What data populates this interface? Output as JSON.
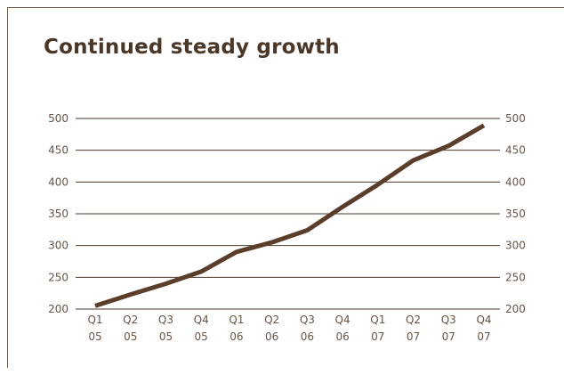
{
  "chart_data": {
    "type": "line",
    "title": "Continued steady growth",
    "xlabel": "",
    "ylabel": "",
    "categories": [
      [
        "Q1",
        "05"
      ],
      [
        "Q2",
        "05"
      ],
      [
        "Q3",
        "05"
      ],
      [
        "Q4",
        "05"
      ],
      [
        "Q1",
        "06"
      ],
      [
        "Q2",
        "06"
      ],
      [
        "Q3",
        "06"
      ],
      [
        "Q4",
        "06"
      ],
      [
        "Q1",
        "07"
      ],
      [
        "Q2",
        "07"
      ],
      [
        "Q3",
        "07"
      ],
      [
        "Q4",
        "07"
      ]
    ],
    "series": [
      {
        "values": [
          205,
          223,
          240,
          259,
          290,
          305,
          324,
          361,
          396,
          434,
          457,
          489
        ]
      }
    ],
    "ylim": [
      200,
      500
    ],
    "yticks": [
      200,
      250,
      300,
      350,
      400,
      450,
      500
    ],
    "y_axis_both_sides": true,
    "grid": true,
    "legend": "none",
    "colors": {
      "line": "#5a3e2b",
      "grid": "#4a3728",
      "text": "#6a5446",
      "title": "#4a3728"
    }
  }
}
